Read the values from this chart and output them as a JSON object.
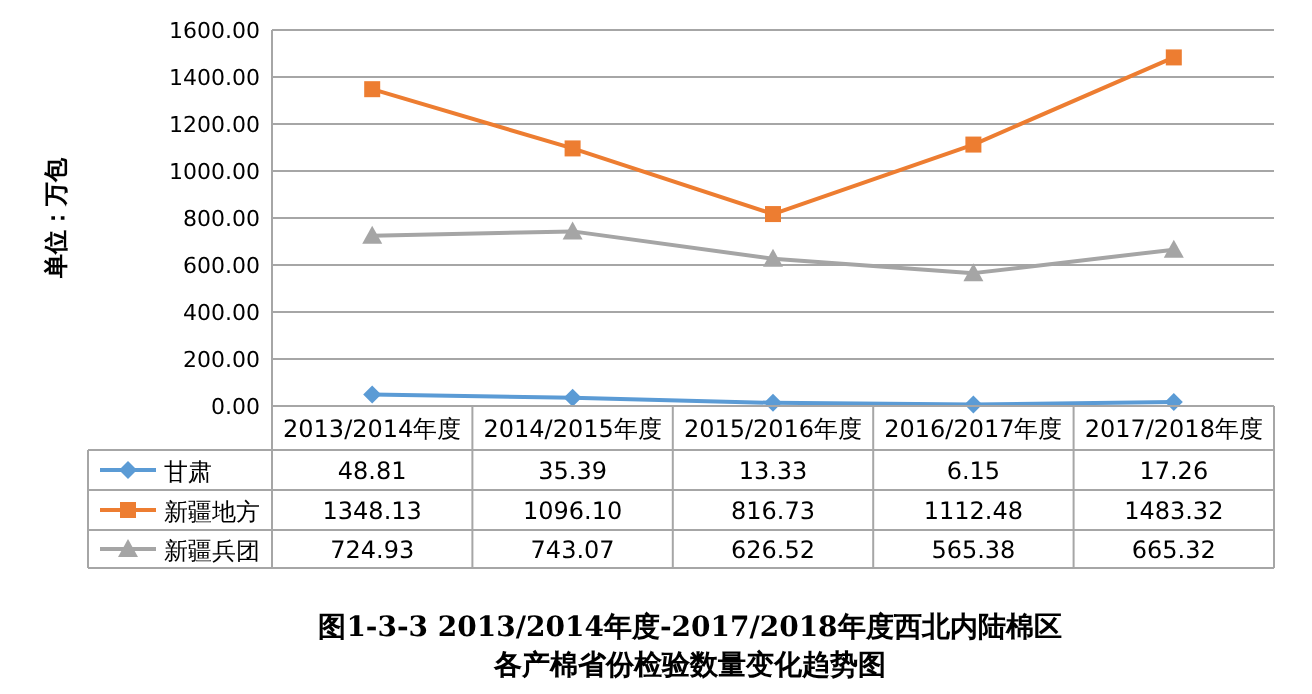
{
  "chart_data": {
    "type": "line",
    "title": "图1-3-3 2013/2014年度-2017/2018年度西北内陆棉区",
    "subtitle": "各产棉省份检验数量变化趋势图",
    "ylabel": "单位：万包",
    "categories": [
      "2013/2014年度",
      "2014/2015年度",
      "2015/2016年度",
      "2016/2017年度",
      "2017/2018年度"
    ],
    "series": [
      {
        "name": "甘肃",
        "color": "#5b9bd5",
        "marker": "diamond",
        "values": [
          48.81,
          35.39,
          13.33,
          6.15,
          17.26
        ],
        "value_labels": [
          "48.81",
          "35.39",
          "13.33",
          "6.15",
          "17.26"
        ]
      },
      {
        "name": "新疆地方",
        "color": "#ed7d31",
        "marker": "square",
        "values": [
          1348.13,
          1096.1,
          816.73,
          1112.48,
          1483.32
        ],
        "value_labels": [
          "1348.13",
          "1096.10",
          "816.73",
          "1112.48",
          "1483.32"
        ]
      },
      {
        "name": "新疆兵团",
        "color": "#a5a5a5",
        "marker": "triangle",
        "values": [
          724.93,
          743.07,
          626.52,
          565.38,
          665.32
        ],
        "value_labels": [
          "724.93",
          "743.07",
          "626.52",
          "565.38",
          "665.32"
        ]
      }
    ],
    "ylim": [
      0,
      1600
    ],
    "yticks": [
      {
        "value": 0,
        "label": "0.00"
      },
      {
        "value": 200,
        "label": "200.00"
      },
      {
        "value": 400,
        "label": "400.00"
      },
      {
        "value": 600,
        "label": "600.00"
      },
      {
        "value": 800,
        "label": "800.00"
      },
      {
        "value": 1000,
        "label": "1000.00"
      },
      {
        "value": 1200,
        "label": "1200.00"
      },
      {
        "value": 1400,
        "label": "1400.00"
      },
      {
        "value": 1600,
        "label": "1600.00"
      }
    ],
    "grid": "y",
    "legend": "bottom left"
  }
}
